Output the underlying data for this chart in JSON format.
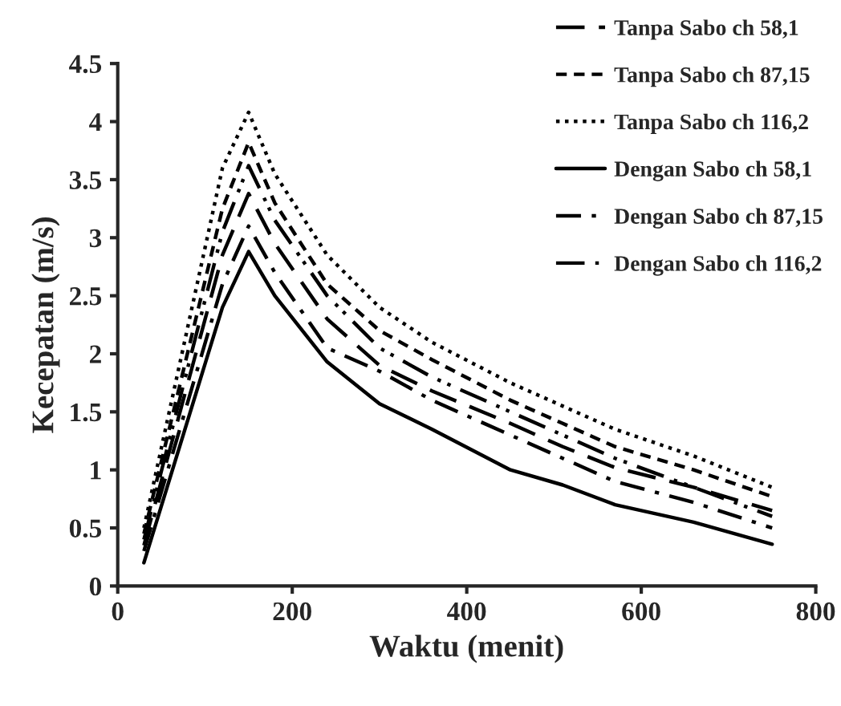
{
  "chart_data": {
    "type": "line",
    "xlabel": "Waktu (menit)",
    "ylabel": "Kecepatan (m/s)",
    "x": [
      30,
      120,
      150,
      180,
      240,
      300,
      360,
      450,
      510,
      570,
      660,
      750
    ],
    "xlim": [
      0,
      800
    ],
    "xticks": [
      0,
      200,
      400,
      600,
      800
    ],
    "ylim": [
      0,
      4.5
    ],
    "yticks": [
      0,
      0.5,
      1,
      1.5,
      2,
      2.5,
      3,
      3.5,
      4,
      4.5
    ],
    "grid": false,
    "legend": "top right",
    "marker": "none",
    "series": [
      {
        "name": "Tanpa Sabo ch 58,1",
        "color": "#000000",
        "line_style": "longdash",
        "values": [
          0.35,
          2.85,
          3.38,
          2.95,
          2.3,
          1.9,
          1.68,
          1.4,
          1.2,
          1.02,
          0.85,
          0.65
        ]
      },
      {
        "name": "Tanpa Sabo ch 87,15",
        "color": "#000000",
        "line_style": "dashed",
        "values": [
          0.45,
          3.25,
          3.82,
          3.3,
          2.6,
          2.2,
          1.95,
          1.6,
          1.4,
          1.2,
          1.0,
          0.77
        ]
      },
      {
        "name": "Tanpa Sabo ch 116,2",
        "color": "#000000",
        "line_style": "dotted",
        "values": [
          0.5,
          3.6,
          4.08,
          3.55,
          2.85,
          2.4,
          2.1,
          1.75,
          1.55,
          1.35,
          1.12,
          0.85
        ]
      },
      {
        "name": "Dengan Sabo ch 58,1",
        "color": "#000000",
        "line_style": "solid",
        "values": [
          0.2,
          2.4,
          2.88,
          2.5,
          1.93,
          1.57,
          1.35,
          1.0,
          0.87,
          0.7,
          0.55,
          0.36
        ]
      },
      {
        "name": "Dengan Sabo ch 87,15",
        "color": "#000000",
        "line_style": "dashdot",
        "values": [
          0.3,
          2.6,
          3.1,
          2.7,
          2.05,
          1.85,
          1.6,
          1.3,
          1.1,
          0.9,
          0.72,
          0.5
        ]
      },
      {
        "name": "Dengan Sabo ch 116,2",
        "color": "#000000",
        "line_style": "dashdotdot",
        "values": [
          0.4,
          3.05,
          3.62,
          3.15,
          2.5,
          2.05,
          1.8,
          1.5,
          1.3,
          1.1,
          0.85,
          0.6
        ]
      }
    ]
  }
}
